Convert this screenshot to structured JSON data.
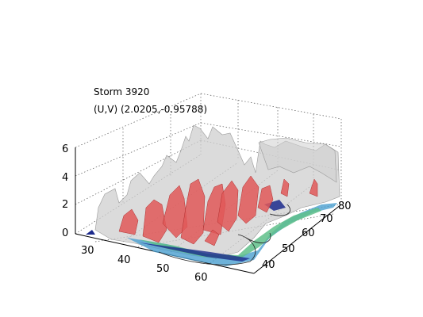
{
  "chart_data": {
    "type": "surface-3d",
    "title": "Storm 3920",
    "subtitle": "(U,V) (2.0205,-0.95788)",
    "xlabel": "",
    "ylabel": "",
    "zlabel": "",
    "x_ticks": [
      "30",
      "40",
      "50",
      "60"
    ],
    "y_ticks": [
      "40",
      "50",
      "60",
      "70",
      "80"
    ],
    "z_ticks": [
      "0",
      "2",
      "4",
      "6"
    ],
    "xlim": [
      25,
      65
    ],
    "ylim": [
      35,
      85
    ],
    "zlim": [
      0,
      6
    ],
    "grid": true,
    "colors": {
      "envelope": "#c8c8c8",
      "core": "#e05858",
      "base_cool": "#4a9fd0",
      "base_green": "#5fbf8a",
      "base_dark": "#1c2a8c"
    }
  }
}
